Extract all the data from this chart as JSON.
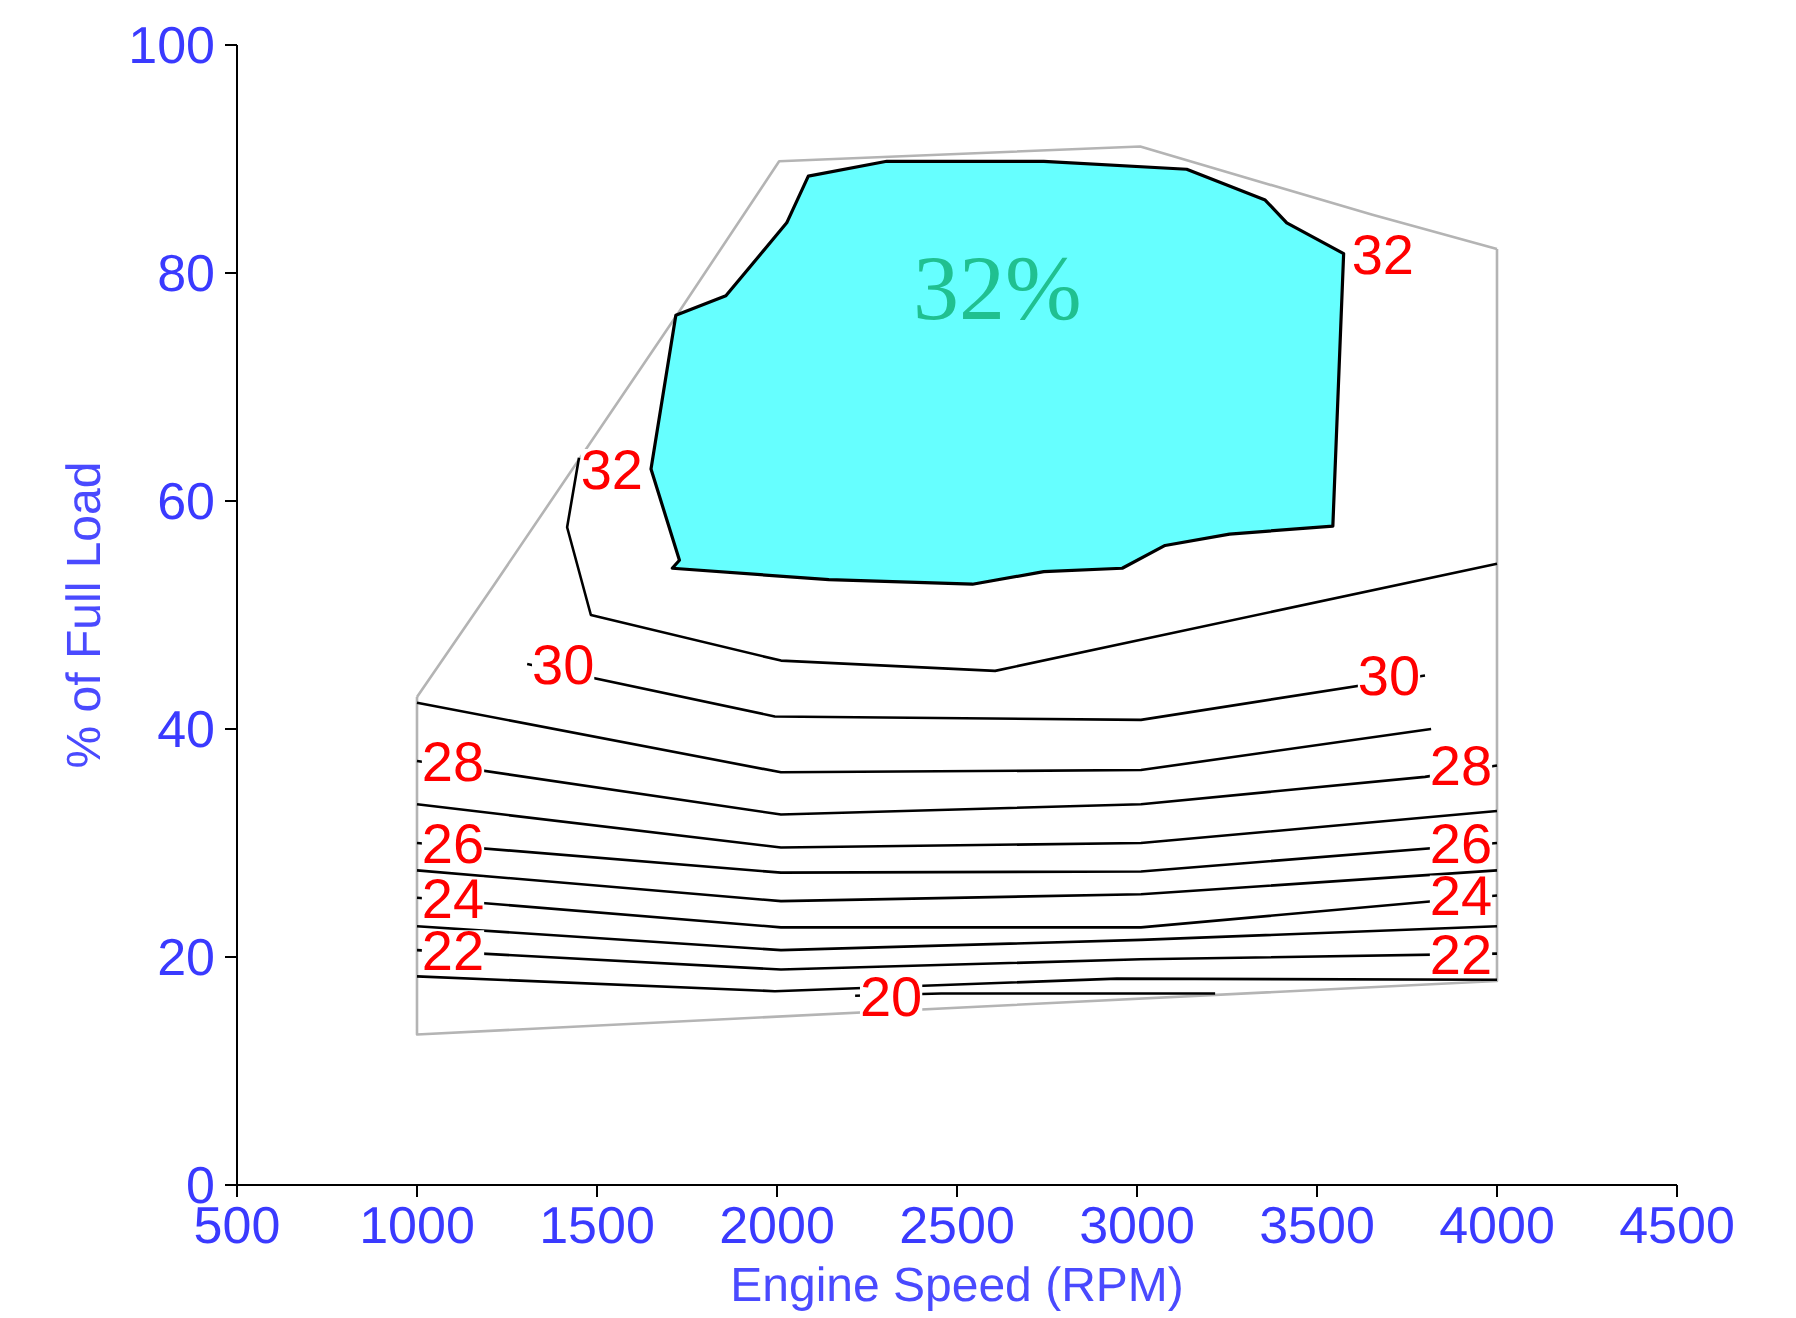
{
  "chart_data": {
    "type": "line",
    "xlabel": "Engine Speed (RPM)",
    "ylabel": "% of Full Load",
    "xlim": [
      500,
      4500
    ],
    "xticks": [
      500,
      1000,
      1500,
      2000,
      2500,
      3000,
      3500,
      4000,
      4500
    ],
    "ylim": [
      0,
      100
    ],
    "yticks": [
      0,
      20,
      40,
      60,
      80,
      100
    ],
    "grid": false,
    "marker": "none",
    "line_style": "solid",
    "series": [
      {
        "color": "#b4b4b4",
        "x": [
          1000,
          1000,
          4000,
          4000
        ],
        "values": [
          42.8,
          13.2,
          17.9,
          82.1
        ]
      },
      {
        "color": "#b4b4b4",
        "x": [
          1000,
          1211,
          1728,
          2006,
          3009,
          3654,
          4000
        ],
        "values": [
          42.8,
          52.5,
          76.6,
          89.8,
          91.1,
          85.1,
          82.1
        ]
      },
      {
        "name": "20",
        "color": "#000000",
        "x": [
          2217,
          2456,
          3217
        ],
        "values": [
          16.6,
          16.8,
          16.8
        ]
      },
      {
        "color": "#000000",
        "x": [
          1000,
          1994,
          2944,
          4000
        ],
        "values": [
          18.3,
          17.0,
          18.1,
          18.0
        ]
      },
      {
        "name": "22",
        "color": "#000000",
        "x": [
          1000,
          2011,
          3011,
          4000
        ],
        "values": [
          20.6,
          18.9,
          19.8,
          20.3
        ]
      },
      {
        "color": "#000000",
        "x": [
          1000,
          2011,
          3011,
          4000
        ],
        "values": [
          22.7,
          20.6,
          21.5,
          22.7
        ]
      },
      {
        "name": "24",
        "color": "#000000",
        "x": [
          1000,
          2011,
          3011,
          4000
        ],
        "values": [
          25.2,
          22.6,
          22.6,
          25.4
        ]
      },
      {
        "color": "#000000",
        "x": [
          1000,
          2011,
          3011,
          4000
        ],
        "values": [
          27.6,
          24.9,
          25.5,
          27.6
        ]
      },
      {
        "name": "26",
        "color": "#000000",
        "x": [
          1000,
          2011,
          3011,
          4000
        ],
        "values": [
          30.0,
          27.4,
          27.5,
          30.0
        ]
      },
      {
        "color": "#000000",
        "x": [
          1000,
          2011,
          3011,
          4000
        ],
        "values": [
          33.4,
          29.6,
          30.0,
          32.8
        ]
      },
      {
        "name": "28",
        "color": "#000000",
        "x": [
          1000,
          2011,
          3011,
          3800,
          4000
        ],
        "values": [
          37.2,
          32.5,
          33.4,
          35.8,
          36.8
        ]
      },
      {
        "color": "#000000",
        "x": [
          1000,
          2011,
          3011,
          3817
        ],
        "values": [
          42.3,
          36.2,
          36.4,
          40.0
        ]
      },
      {
        "name": "30",
        "color": "#000000",
        "x": [
          1306,
          1994,
          3011,
          3800
        ],
        "values": [
          45.7,
          41.1,
          40.8,
          44.7
        ]
      },
      {
        "color": "#000000",
        "x": [
          1450,
          1417,
          1483,
          2011,
          2606,
          4000
        ],
        "values": [
          63.8,
          57.7,
          50.0,
          46.0,
          45.1,
          54.5
        ]
      },
      {
        "name": "32",
        "type": "area",
        "color": "#66ffff",
        "x": [
          1719,
          1858,
          2027,
          2087,
          2305,
          2741,
          3138,
          3356,
          3416,
          3574,
          3544,
          3257,
          3078,
          2959,
          2741,
          2543,
          2144,
          1709,
          1729,
          1650,
          1719
        ],
        "values": [
          76.3,
          78.0,
          84.4,
          88.5,
          89.8,
          89.8,
          89.1,
          86.4,
          84.4,
          81.7,
          57.8,
          57.1,
          56.1,
          54.1,
          53.8,
          52.7,
          53.1,
          54.1,
          54.8,
          62.8,
          76.3
        ]
      }
    ],
    "annotations": [
      "32%"
    ]
  }
}
